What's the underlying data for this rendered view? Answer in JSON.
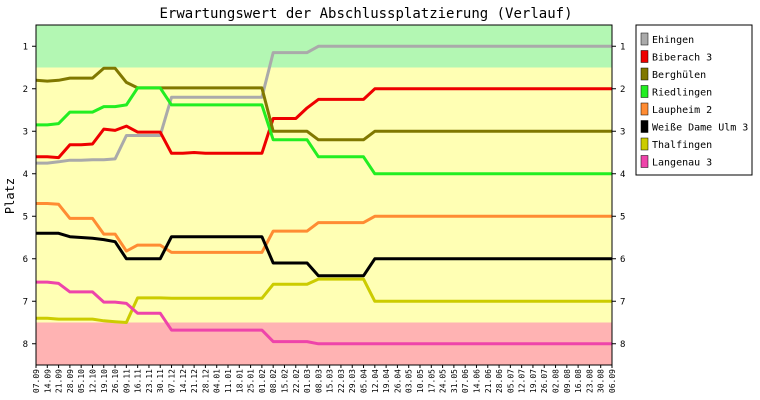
{
  "chart_data": {
    "type": "line",
    "title": "Erwartungswert der Abschlussplatzierung (Verlauf)",
    "ylabel": "Platz",
    "xlabel": "",
    "ylim": [
      0.5,
      8.5
    ],
    "y_reversed": true,
    "y_ticks": [
      "1",
      "2",
      "3",
      "4",
      "5",
      "6",
      "7",
      "8"
    ],
    "bands": [
      {
        "from": 0.5,
        "to": 1.5,
        "color": "#b3f7b3"
      },
      {
        "from": 1.5,
        "to": 7.5,
        "color": "#ffffb4"
      },
      {
        "from": 7.5,
        "to": 8.5,
        "color": "#ffb3b3"
      }
    ],
    "legend_position": "right",
    "categories": [
      "07.09",
      "14.09",
      "21.09",
      "28.09",
      "05.10",
      "12.10",
      "19.10",
      "26.10",
      "09.11",
      "16.11",
      "23.11",
      "30.11",
      "07.12",
      "14.12",
      "21.12",
      "28.12",
      "04.01",
      "11.01",
      "18.01",
      "25.01",
      "01.02",
      "08.02",
      "15.02",
      "22.02",
      "01.03",
      "08.03",
      "15.03",
      "22.03",
      "29.03",
      "05.04",
      "12.04",
      "19.04",
      "26.04",
      "03.05",
      "10.05",
      "17.05",
      "24.05",
      "31.05",
      "07.06",
      "14.06",
      "21.06",
      "28.06",
      "05.07",
      "12.07",
      "19.07",
      "26.07",
      "02.08",
      "09.08",
      "16.08",
      "23.08",
      "30.08",
      "06.09"
    ],
    "series": [
      {
        "name": "Ehingen",
        "color": "#aaaaaa",
        "values": [
          3.75,
          3.75,
          3.72,
          3.68,
          3.68,
          3.67,
          3.67,
          3.65,
          3.1,
          3.1,
          3.1,
          3.1,
          2.2,
          2.2,
          2.2,
          2.2,
          2.2,
          2.2,
          2.2,
          2.2,
          2.2,
          1.15,
          1.15,
          1.15,
          1.15,
          1.0,
          1.0,
          1.0,
          1.0,
          1.0,
          1.0,
          1.0,
          1.0,
          1.0,
          1.0,
          1.0,
          1.0,
          1.0,
          1.0,
          1.0,
          1.0,
          1.0,
          1.0,
          1.0,
          1.0,
          1.0,
          1.0,
          1.0,
          1.0,
          1.0,
          1.0,
          1.0
        ]
      },
      {
        "name": "Biberach 3",
        "color": "#ee0000",
        "values": [
          3.6,
          3.6,
          3.62,
          3.32,
          3.32,
          3.3,
          2.95,
          2.98,
          2.88,
          3.02,
          3.02,
          3.02,
          3.52,
          3.52,
          3.5,
          3.52,
          3.52,
          3.52,
          3.52,
          3.52,
          3.52,
          2.7,
          2.7,
          2.7,
          2.45,
          2.25,
          2.25,
          2.25,
          2.25,
          2.25,
          2.0,
          2.0,
          2.0,
          2.0,
          2.0,
          2.0,
          2.0,
          2.0,
          2.0,
          2.0,
          2.0,
          2.0,
          2.0,
          2.0,
          2.0,
          2.0,
          2.0,
          2.0,
          2.0,
          2.0,
          2.0,
          2.0
        ]
      },
      {
        "name": "Berghülen",
        "color": "#807800",
        "values": [
          1.8,
          1.82,
          1.8,
          1.75,
          1.75,
          1.75,
          1.52,
          1.52,
          1.85,
          1.98,
          1.98,
          1.98,
          1.98,
          1.98,
          1.98,
          1.98,
          1.98,
          1.98,
          1.98,
          1.98,
          1.98,
          3.0,
          3.0,
          3.0,
          3.0,
          3.2,
          3.2,
          3.2,
          3.2,
          3.2,
          3.0,
          3.0,
          3.0,
          3.0,
          3.0,
          3.0,
          3.0,
          3.0,
          3.0,
          3.0,
          3.0,
          3.0,
          3.0,
          3.0,
          3.0,
          3.0,
          3.0,
          3.0,
          3.0,
          3.0,
          3.0,
          3.0
        ]
      },
      {
        "name": "Riedlingen",
        "color": "#22ee22",
        "values": [
          2.85,
          2.85,
          2.82,
          2.55,
          2.55,
          2.55,
          2.42,
          2.42,
          2.38,
          1.98,
          1.98,
          1.98,
          2.38,
          2.38,
          2.38,
          2.38,
          2.38,
          2.38,
          2.38,
          2.38,
          2.38,
          3.2,
          3.2,
          3.2,
          3.2,
          3.6,
          3.6,
          3.6,
          3.6,
          3.6,
          4.0,
          4.0,
          4.0,
          4.0,
          4.0,
          4.0,
          4.0,
          4.0,
          4.0,
          4.0,
          4.0,
          4.0,
          4.0,
          4.0,
          4.0,
          4.0,
          4.0,
          4.0,
          4.0,
          4.0,
          4.0,
          4.0
        ]
      },
      {
        "name": "Laupheim 2",
        "color": "#ff8c33",
        "values": [
          4.7,
          4.7,
          4.72,
          5.05,
          5.05,
          5.05,
          5.42,
          5.42,
          5.82,
          5.68,
          5.68,
          5.68,
          5.85,
          5.85,
          5.85,
          5.85,
          5.85,
          5.85,
          5.85,
          5.85,
          5.85,
          5.35,
          5.35,
          5.35,
          5.35,
          5.15,
          5.15,
          5.15,
          5.15,
          5.15,
          5.0,
          5.0,
          5.0,
          5.0,
          5.0,
          5.0,
          5.0,
          5.0,
          5.0,
          5.0,
          5.0,
          5.0,
          5.0,
          5.0,
          5.0,
          5.0,
          5.0,
          5.0,
          5.0,
          5.0,
          5.0,
          5.0
        ]
      },
      {
        "name": "Weiße Dame Ulm 3",
        "color": "#000000",
        "values": [
          5.4,
          5.4,
          5.4,
          5.48,
          5.5,
          5.52,
          5.55,
          5.6,
          6.0,
          6.0,
          6.0,
          6.0,
          5.48,
          5.48,
          5.48,
          5.48,
          5.48,
          5.48,
          5.48,
          5.48,
          5.48,
          6.1,
          6.1,
          6.1,
          6.1,
          6.4,
          6.4,
          6.4,
          6.4,
          6.4,
          6.0,
          6.0,
          6.0,
          6.0,
          6.0,
          6.0,
          6.0,
          6.0,
          6.0,
          6.0,
          6.0,
          6.0,
          6.0,
          6.0,
          6.0,
          6.0,
          6.0,
          6.0,
          6.0,
          6.0,
          6.0,
          6.0
        ]
      },
      {
        "name": "Thalfingen",
        "color": "#cccc00",
        "values": [
          7.4,
          7.4,
          7.42,
          7.42,
          7.42,
          7.42,
          7.46,
          7.48,
          7.5,
          6.92,
          6.92,
          6.92,
          6.93,
          6.93,
          6.93,
          6.93,
          6.93,
          6.93,
          6.93,
          6.93,
          6.93,
          6.6,
          6.6,
          6.6,
          6.6,
          6.48,
          6.48,
          6.48,
          6.48,
          6.48,
          7.0,
          7.0,
          7.0,
          7.0,
          7.0,
          7.0,
          7.0,
          7.0,
          7.0,
          7.0,
          7.0,
          7.0,
          7.0,
          7.0,
          7.0,
          7.0,
          7.0,
          7.0,
          7.0,
          7.0,
          7.0,
          7.0
        ]
      },
      {
        "name": "Langenau 3",
        "color": "#ee44aa",
        "values": [
          6.55,
          6.55,
          6.58,
          6.78,
          6.78,
          6.78,
          7.02,
          7.02,
          7.05,
          7.28,
          7.28,
          7.28,
          7.68,
          7.68,
          7.68,
          7.68,
          7.68,
          7.68,
          7.68,
          7.68,
          7.68,
          7.95,
          7.95,
          7.95,
          7.95,
          8.0,
          8.0,
          8.0,
          8.0,
          8.0,
          8.0,
          8.0,
          8.0,
          8.0,
          8.0,
          8.0,
          8.0,
          8.0,
          8.0,
          8.0,
          8.0,
          8.0,
          8.0,
          8.0,
          8.0,
          8.0,
          8.0,
          8.0,
          8.0,
          8.0,
          8.0,
          8.0
        ]
      }
    ]
  }
}
